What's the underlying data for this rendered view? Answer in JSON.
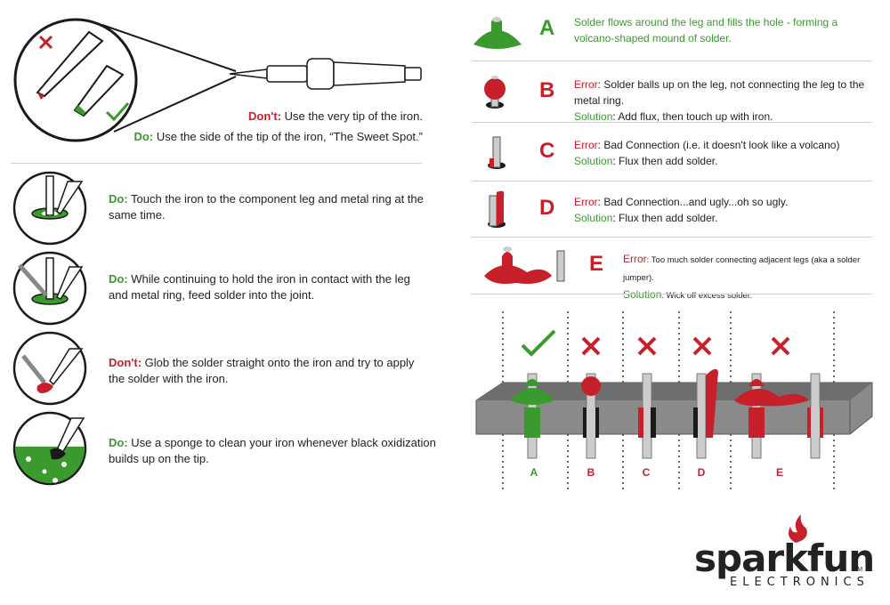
{
  "tip": {
    "dont_label": "Don't:",
    "dont_text": " Use the very tip of the iron.",
    "do_label": "Do:",
    "do_text": " Use the side of the tip of the iron, “The Sweet Spot.”"
  },
  "steps": [
    {
      "label": "Do:",
      "label_type": "do",
      "text": " Touch the iron to the component leg and metal ring at the same time."
    },
    {
      "label": "Do:",
      "label_type": "do",
      "text": "  While continuing to hold the iron in contact with the leg and metal ring, feed solder into the joint."
    },
    {
      "label": "Don't:",
      "label_type": "dont",
      "text": " Glob the solder straight onto the iron and try to apply the solder with the iron."
    },
    {
      "label": "Do:",
      "label_type": "do",
      "text": " Use a sponge to clean your iron whenever black oxidization builds up on the tip."
    }
  ],
  "joints": [
    {
      "letter": "A",
      "letter_color": "#3a9a2e",
      "line1": "Solder flows around the leg and fills the hole - forming a",
      "line2": "volcano-shaped mound of solder."
    },
    {
      "letter": "B",
      "letter_color": "#c8202a",
      "error_label": "Error",
      "error_text": ": Solder balls up on the leg, not connecting the leg to the metal ring.",
      "solution_label": "Solution",
      "solution_text": ": Add flux, then touch up with iron."
    },
    {
      "letter": "C",
      "letter_color": "#c8202a",
      "error_label": "Error",
      "error_text": ": Bad Connection (i.e. it doesn't look like a volcano)",
      "solution_label": "Solution",
      "solution_text": ": Flux then add solder."
    },
    {
      "letter": "D",
      "letter_color": "#c8202a",
      "error_label": "Error",
      "error_text": ": Bad Connection...and ugly...oh so ugly.",
      "solution_label": "Solution",
      "solution_text": ": Flux then add solder."
    },
    {
      "letter": "E",
      "letter_color": "#c8202a",
      "error_label": "Error",
      "error_text": ": Too much solder connecting adjacent legs (aka a solder jumper).",
      "solution_label": "Solution",
      "solution_text": ": Wick off excess solder."
    }
  ],
  "board_labels": [
    "A",
    "B",
    "C",
    "D",
    "E"
  ],
  "logo": {
    "name": "sparkfun",
    "tm": "TM",
    "sub": "ELECTRONICS"
  },
  "colors": {
    "red": "#c8202a",
    "green": "#3a9a2e",
    "board": "#8a8a8a"
  }
}
